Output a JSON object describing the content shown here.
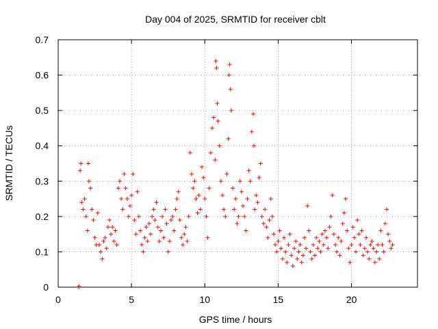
{
  "chart_data": {
    "type": "scatter",
    "title": "Day 004 of 2025, SRMTID for receiver cblt",
    "xlabel": "GPS time / hours",
    "ylabel": "SRMTID / TECUs",
    "xlim": [
      0,
      24.5
    ],
    "ylim": [
      0,
      0.7
    ],
    "xticks": [
      0,
      5,
      10,
      15,
      20
    ],
    "yticks": [
      0,
      0.1,
      0.2,
      0.3,
      0.4,
      0.5,
      0.6,
      0.7
    ],
    "xtick_labels": [
      "0",
      "5",
      "10",
      "15",
      "20"
    ],
    "ytick_labels": [
      "0",
      "0.1",
      "0.2",
      "0.3",
      "0.4",
      "0.5",
      "0.6",
      "0.7"
    ],
    "grid": true,
    "marker": "+",
    "color": "#ff0000",
    "series": [
      {
        "name": "SRMTID",
        "points": [
          [
            1.4,
            0.0
          ],
          [
            1.42,
            0.002
          ],
          [
            1.5,
            0.33
          ],
          [
            1.55,
            0.35
          ],
          [
            1.6,
            0.24
          ],
          [
            1.7,
            0.22
          ],
          [
            1.8,
            0.25
          ],
          [
            1.9,
            0.2
          ],
          [
            2.0,
            0.16
          ],
          [
            2.05,
            0.35
          ],
          [
            2.1,
            0.3
          ],
          [
            2.2,
            0.28
          ],
          [
            2.3,
            0.22
          ],
          [
            2.4,
            0.19
          ],
          [
            2.5,
            0.14
          ],
          [
            2.6,
            0.12
          ],
          [
            2.7,
            0.21
          ],
          [
            2.8,
            0.12
          ],
          [
            2.9,
            0.1
          ],
          [
            3.0,
            0.08
          ],
          [
            3.1,
            0.13
          ],
          [
            3.2,
            0.14
          ],
          [
            3.3,
            0.11
          ],
          [
            3.4,
            0.17
          ],
          [
            3.5,
            0.19
          ],
          [
            3.6,
            0.15
          ],
          [
            3.7,
            0.17
          ],
          [
            3.8,
            0.13
          ],
          [
            3.9,
            0.16
          ],
          [
            4.0,
            0.12
          ],
          [
            4.1,
            0.28
          ],
          [
            4.2,
            0.3
          ],
          [
            4.3,
            0.25
          ],
          [
            4.4,
            0.22
          ],
          [
            4.5,
            0.32
          ],
          [
            4.6,
            0.28
          ],
          [
            4.7,
            0.25
          ],
          [
            4.8,
            0.2
          ],
          [
            4.9,
            0.23
          ],
          [
            5.0,
            0.26
          ],
          [
            5.1,
            0.32
          ],
          [
            5.2,
            0.19
          ],
          [
            5.3,
            0.15
          ],
          [
            5.4,
            0.27
          ],
          [
            5.5,
            0.2
          ],
          [
            5.6,
            0.16
          ],
          [
            5.7,
            0.12
          ],
          [
            5.8,
            0.1
          ],
          [
            5.9,
            0.14
          ],
          [
            6.0,
            0.17
          ],
          [
            6.1,
            0.13
          ],
          [
            6.2,
            0.18
          ],
          [
            6.3,
            0.15
          ],
          [
            6.4,
            0.2
          ],
          [
            6.5,
            0.22
          ],
          [
            6.6,
            0.19
          ],
          [
            6.7,
            0.24
          ],
          [
            6.8,
            0.17
          ],
          [
            6.9,
            0.13
          ],
          [
            7.0,
            0.16
          ],
          [
            7.1,
            0.2
          ],
          [
            7.2,
            0.14
          ],
          [
            7.3,
            0.22
          ],
          [
            7.4,
            0.18
          ],
          [
            7.5,
            0.1
          ],
          [
            7.6,
            0.13
          ],
          [
            7.7,
            0.19
          ],
          [
            7.8,
            0.2
          ],
          [
            7.9,
            0.16
          ],
          [
            8.0,
            0.22
          ],
          [
            8.1,
            0.25
          ],
          [
            8.2,
            0.27
          ],
          [
            8.3,
            0.19
          ],
          [
            8.4,
            0.14
          ],
          [
            8.5,
            0.12
          ],
          [
            8.6,
            0.15
          ],
          [
            8.7,
            0.17
          ],
          [
            8.8,
            0.13
          ],
          [
            8.9,
            0.2
          ],
          [
            9.0,
            0.38
          ],
          [
            9.1,
            0.32
          ],
          [
            9.2,
            0.28
          ],
          [
            9.3,
            0.3
          ],
          [
            9.4,
            0.25
          ],
          [
            9.5,
            0.21
          ],
          [
            9.6,
            0.26
          ],
          [
            9.7,
            0.22
          ],
          [
            9.8,
            0.34
          ],
          [
            9.9,
            0.31
          ],
          [
            10.0,
            0.25
          ],
          [
            10.1,
            0.2
          ],
          [
            10.2,
            0.14
          ],
          [
            10.3,
            0.28
          ],
          [
            10.4,
            0.38
          ],
          [
            10.5,
            0.45
          ],
          [
            10.6,
            0.48
          ],
          [
            10.7,
            0.36
          ],
          [
            10.75,
            0.64
          ],
          [
            10.8,
            0.62
          ],
          [
            10.85,
            0.52
          ],
          [
            10.9,
            0.47
          ],
          [
            11.0,
            0.4
          ],
          [
            11.1,
            0.3
          ],
          [
            11.2,
            0.26
          ],
          [
            11.3,
            0.22
          ],
          [
            11.4,
            0.2
          ],
          [
            11.5,
            0.32
          ],
          [
            11.6,
            0.42
          ],
          [
            11.65,
            0.6
          ],
          [
            11.7,
            0.63
          ],
          [
            11.75,
            0.56
          ],
          [
            11.8,
            0.5
          ],
          [
            11.9,
            0.28
          ],
          [
            12.0,
            0.22
          ],
          [
            12.1,
            0.25
          ],
          [
            12.2,
            0.18
          ],
          [
            12.3,
            0.2
          ],
          [
            12.4,
            0.3
          ],
          [
            12.5,
            0.27
          ],
          [
            12.6,
            0.23
          ],
          [
            12.7,
            0.2
          ],
          [
            12.8,
            0.16
          ],
          [
            12.9,
            0.25
          ],
          [
            13.0,
            0.33
          ],
          [
            13.1,
            0.3
          ],
          [
            13.2,
            0.44
          ],
          [
            13.3,
            0.49
          ],
          [
            13.35,
            0.4
          ],
          [
            13.4,
            0.22
          ],
          [
            13.5,
            0.26
          ],
          [
            13.6,
            0.24
          ],
          [
            13.7,
            0.31
          ],
          [
            13.8,
            0.35
          ],
          [
            13.9,
            0.2
          ],
          [
            14.0,
            0.18
          ],
          [
            14.1,
            0.22
          ],
          [
            14.2,
            0.17
          ],
          [
            14.3,
            0.14
          ],
          [
            14.4,
            0.19
          ],
          [
            14.5,
            0.25
          ],
          [
            14.6,
            0.2
          ],
          [
            14.7,
            0.15
          ],
          [
            14.8,
            0.12
          ],
          [
            14.9,
            0.1
          ],
          [
            15.0,
            0.13
          ],
          [
            15.1,
            0.16
          ],
          [
            15.2,
            0.11
          ],
          [
            15.3,
            0.08
          ],
          [
            15.4,
            0.14
          ],
          [
            15.5,
            0.1
          ],
          [
            15.6,
            0.07
          ],
          [
            15.7,
            0.12
          ],
          [
            15.8,
            0.15
          ],
          [
            15.9,
            0.09
          ],
          [
            16.0,
            0.06
          ],
          [
            16.1,
            0.11
          ],
          [
            16.2,
            0.13
          ],
          [
            16.3,
            0.08
          ],
          [
            16.4,
            0.1
          ],
          [
            16.5,
            0.12
          ],
          [
            16.6,
            0.07
          ],
          [
            16.7,
            0.09
          ],
          [
            16.8,
            0.14
          ],
          [
            16.9,
            0.11
          ],
          [
            17.0,
            0.23
          ],
          [
            17.1,
            0.16
          ],
          [
            17.2,
            0.1
          ],
          [
            17.3,
            0.08
          ],
          [
            17.4,
            0.12
          ],
          [
            17.5,
            0.09
          ],
          [
            17.6,
            0.14
          ],
          [
            17.7,
            0.11
          ],
          [
            17.8,
            0.13
          ],
          [
            17.9,
            0.1
          ],
          [
            18.0,
            0.15
          ],
          [
            18.1,
            0.12
          ],
          [
            18.2,
            0.16
          ],
          [
            18.3,
            0.14
          ],
          [
            18.4,
            0.11
          ],
          [
            18.5,
            0.17
          ],
          [
            18.6,
            0.2
          ],
          [
            18.7,
            0.26
          ],
          [
            18.8,
            0.15
          ],
          [
            18.9,
            0.12
          ],
          [
            19.0,
            0.1
          ],
          [
            19.1,
            0.14
          ],
          [
            19.2,
            0.09
          ],
          [
            19.3,
            0.13
          ],
          [
            19.4,
            0.18
          ],
          [
            19.5,
            0.21
          ],
          [
            19.6,
            0.25
          ],
          [
            19.7,
            0.16
          ],
          [
            19.8,
            0.11
          ],
          [
            19.9,
            0.07
          ],
          [
            20.0,
            0.12
          ],
          [
            20.1,
            0.17
          ],
          [
            20.2,
            0.14
          ],
          [
            20.3,
            0.1
          ],
          [
            20.4,
            0.19
          ],
          [
            20.5,
            0.15
          ],
          [
            20.6,
            0.12
          ],
          [
            20.7,
            0.16
          ],
          [
            20.8,
            0.09
          ],
          [
            20.9,
            0.11
          ],
          [
            21.0,
            0.14
          ],
          [
            21.1,
            0.1
          ],
          [
            21.2,
            0.08
          ],
          [
            21.3,
            0.12
          ],
          [
            21.4,
            0.13
          ],
          [
            21.5,
            0.11
          ],
          [
            21.6,
            0.07
          ],
          [
            21.7,
            0.1
          ],
          [
            21.8,
            0.12
          ],
          [
            21.9,
            0.08
          ],
          [
            22.0,
            0.16
          ],
          [
            22.1,
            0.12
          ],
          [
            22.2,
            0.1
          ],
          [
            22.3,
            0.18
          ],
          [
            22.4,
            0.22
          ],
          [
            22.5,
            0.15
          ],
          [
            22.6,
            0.13
          ],
          [
            22.7,
            0.11
          ],
          [
            22.8,
            0.12
          ]
        ]
      }
    ]
  }
}
